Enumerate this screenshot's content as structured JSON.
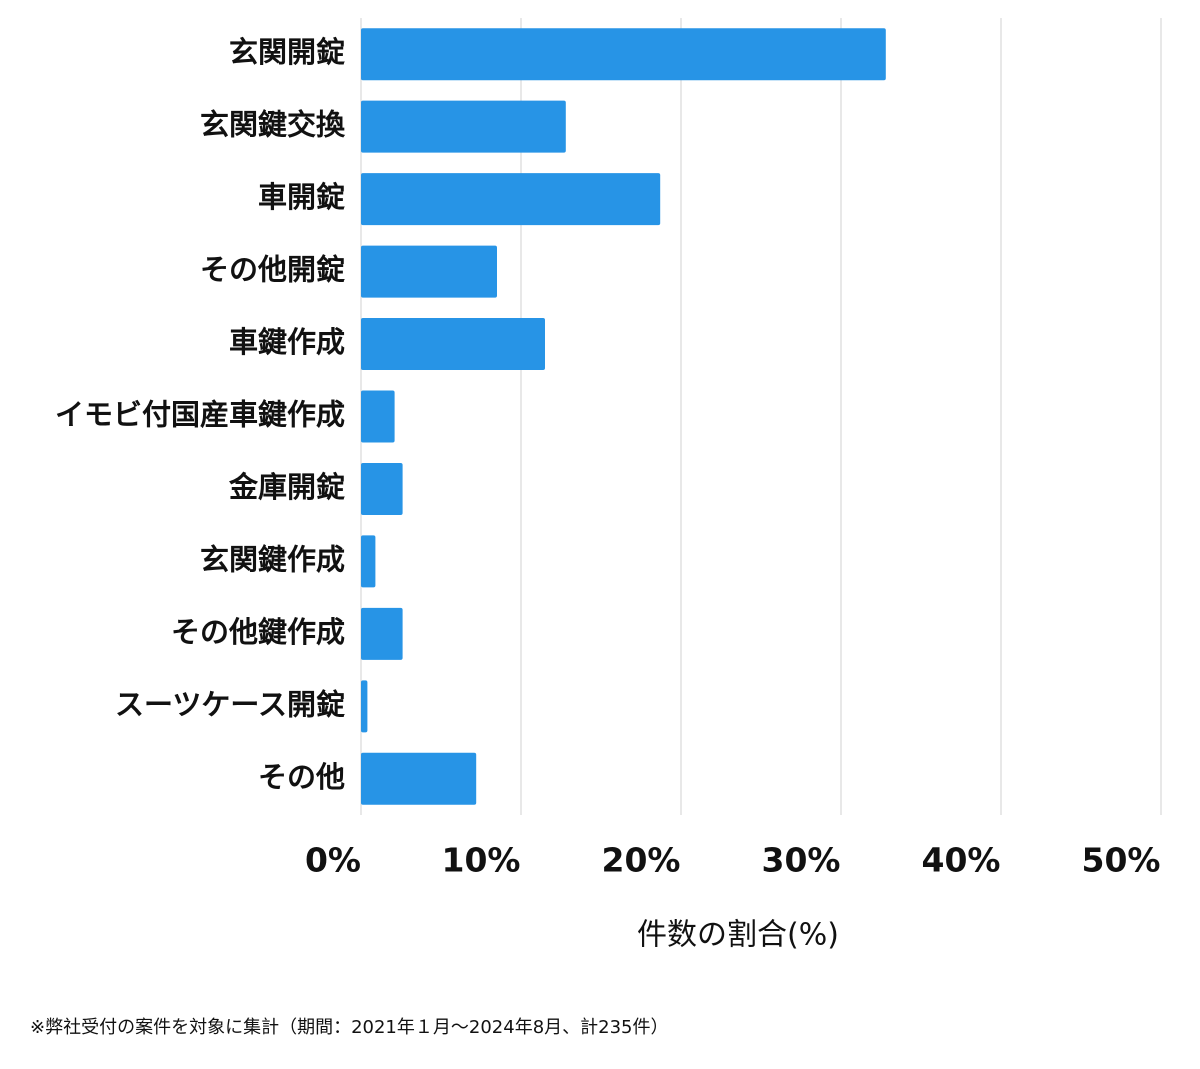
{
  "chart_data": {
    "type": "bar",
    "orientation": "horizontal",
    "categories": [
      "玄関開錠",
      "玄関鍵交換",
      "車開錠",
      "その他開錠",
      "車鍵作成",
      "イモビ付国産車鍵作成",
      "金庫開錠",
      "玄関鍵作成",
      "その他鍵作成",
      "スーツケース開錠",
      "その他"
    ],
    "values": [
      32.8,
      12.8,
      18.7,
      8.5,
      11.5,
      2.1,
      2.6,
      0.9,
      2.6,
      0.4,
      7.2
    ],
    "color": "#2794e6",
    "xlim": [
      0,
      50
    ],
    "xticks": [
      {
        "value": 0,
        "label": "0%"
      },
      {
        "value": 10,
        "label": "10%"
      },
      {
        "value": 20,
        "label": "20%"
      },
      {
        "value": 30,
        "label": "30%"
      },
      {
        "value": 40,
        "label": "40%"
      },
      {
        "value": 50,
        "label": "50%"
      }
    ],
    "xlabel": "件数の割合(%)",
    "grid": true,
    "footnote": "※弊社受付の案件を対象に集計（期間：2021年１月〜2024年8月、計235件）"
  }
}
